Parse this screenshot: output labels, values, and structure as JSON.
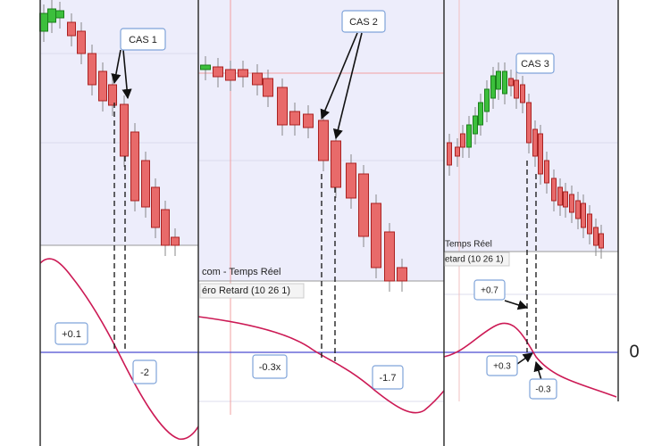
{
  "panels": [
    {
      "title": "CAS 1",
      "labels": [
        "+0.1",
        "-2"
      ]
    },
    {
      "title": "CAS 2",
      "header": [
        "com - Temps Réel",
        "éro Retard (10 26 1)"
      ],
      "labels": [
        "-0.3x",
        "-1.7"
      ]
    },
    {
      "title": "CAS 3",
      "header": [
        "Temps Réel",
        "etard (10 26 1)"
      ],
      "labels": [
        "+0.7",
        "+0.3",
        "-0.3"
      ]
    }
  ],
  "zero_label": "0"
}
